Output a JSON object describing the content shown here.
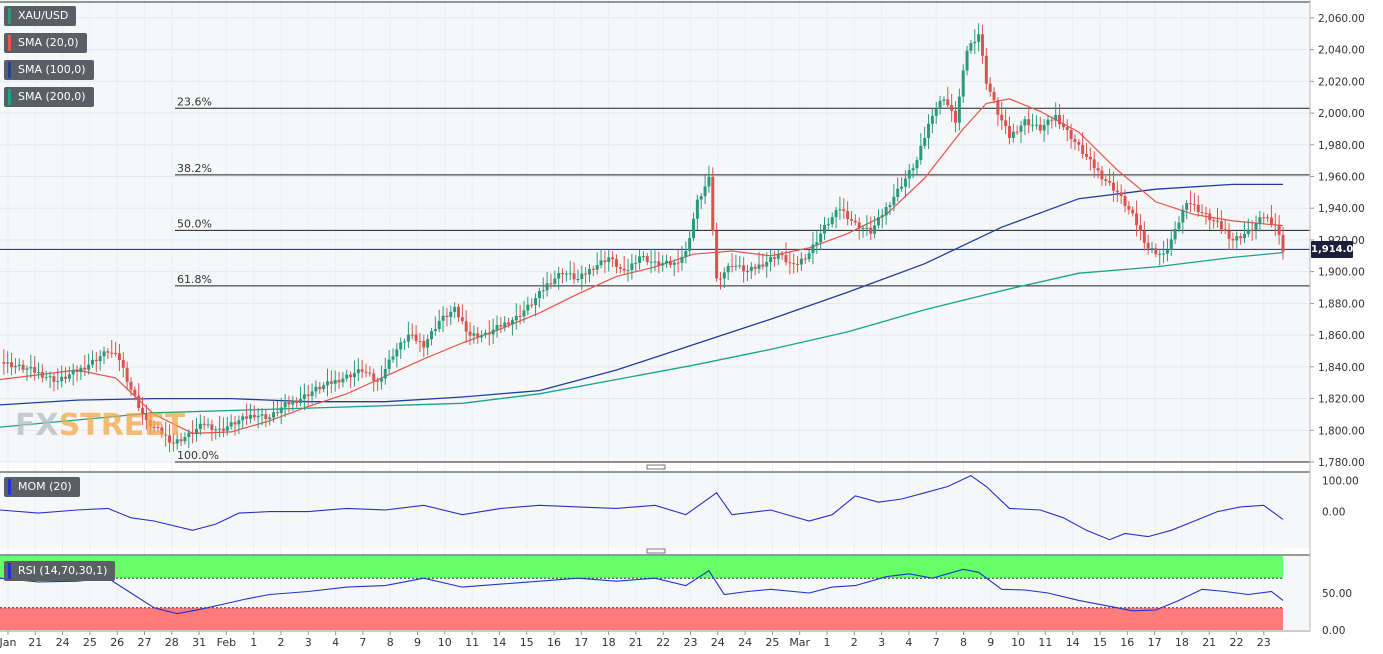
{
  "legend": {
    "symbol": "XAU/USD",
    "sma20": "SMA (20,0)",
    "sma100": "SMA (100,0)",
    "sma200": "SMA (200,0)",
    "mom": "MOM (20)",
    "rsi": "RSI (14,70,30,1)"
  },
  "colors": {
    "up": "#2b9a7a",
    "down": "#d9534f",
    "sma20": "#e8534a",
    "sma100": "#1f3f9a",
    "sma200": "#17a589",
    "momentum": "#2233cc",
    "rsi": "#2233cc",
    "rsi_overbought": "#66ff66",
    "rsi_oversold": "#ff7b7b"
  },
  "watermark": {
    "part1": "FX",
    "part2": "STREET"
  },
  "current_price": "1,914.01",
  "chart_data": {
    "type": "candlestick",
    "price_ylim": [
      1780,
      2070
    ],
    "price_ticks": [
      "1,780.00",
      "1,800.00",
      "1,820.00",
      "1,840.00",
      "1,860.00",
      "1,880.00",
      "1,900.00",
      "1,920.00",
      "1,940.00",
      "1,960.00",
      "1,980.00",
      "2,000.00",
      "2,020.00",
      "2,040.00",
      "2,060.00"
    ],
    "fib_levels": [
      {
        "label": "23.6%",
        "value": 2003
      },
      {
        "label": "38.2%",
        "value": 1961
      },
      {
        "label": "50.0%",
        "value": 1926
      },
      {
        "label": "61.8%",
        "value": 1891
      },
      {
        "label": "100.0%",
        "value": 1780
      }
    ],
    "last_price": 1914.01,
    "x_labels": [
      "Jan",
      "21",
      "24",
      "25",
      "26",
      "27",
      "28",
      "31",
      "Feb",
      "1",
      "2",
      "3",
      "4",
      "7",
      "8",
      "9",
      "10",
      "11",
      "14",
      "15",
      "16",
      "17",
      "18",
      "21",
      "22",
      "23",
      "24",
      "24",
      "25",
      "Mar",
      "1",
      "2",
      "3",
      "4",
      "7",
      "8",
      "9",
      "10",
      "11",
      "14",
      "15",
      "16",
      "17",
      "18",
      "21",
      "22",
      "23"
    ],
    "close_path": [
      [
        0,
        1843
      ],
      [
        8,
        1838
      ],
      [
        15,
        1831
      ],
      [
        22,
        1840
      ],
      [
        28,
        1850
      ],
      [
        31,
        1845
      ],
      [
        34,
        1826
      ],
      [
        38,
        1805
      ],
      [
        41,
        1800
      ],
      [
        45,
        1792
      ],
      [
        49,
        1797
      ],
      [
        53,
        1804
      ],
      [
        57,
        1800
      ],
      [
        62,
        1806
      ],
      [
        66,
        1810
      ],
      [
        70,
        1808
      ],
      [
        74,
        1816
      ],
      [
        78,
        1820
      ],
      [
        82,
        1826
      ],
      [
        86,
        1830
      ],
      [
        90,
        1834
      ],
      [
        94,
        1838
      ],
      [
        98,
        1830
      ],
      [
        102,
        1848
      ],
      [
        106,
        1860
      ],
      [
        110,
        1854
      ],
      [
        114,
        1869
      ],
      [
        118,
        1876
      ],
      [
        122,
        1860
      ],
      [
        126,
        1860
      ],
      [
        130,
        1866
      ],
      [
        134,
        1871
      ],
      [
        138,
        1880
      ],
      [
        142,
        1892
      ],
      [
        146,
        1900
      ],
      [
        150,
        1895
      ],
      [
        154,
        1903
      ],
      [
        158,
        1909
      ],
      [
        162,
        1899
      ],
      [
        166,
        1910
      ],
      [
        170,
        1905
      ],
      [
        175,
        1905
      ],
      [
        178,
        1912
      ],
      [
        181,
        1944
      ],
      [
        184,
        1958
      ],
      [
        186,
        1895
      ],
      [
        190,
        1905
      ],
      [
        194,
        1900
      ],
      [
        198,
        1905
      ],
      [
        202,
        1911
      ],
      [
        206,
        1903
      ],
      [
        210,
        1912
      ],
      [
        214,
        1928
      ],
      [
        218,
        1940
      ],
      [
        222,
        1930
      ],
      [
        226,
        1925
      ],
      [
        230,
        1940
      ],
      [
        234,
        1955
      ],
      [
        238,
        1970
      ],
      [
        242,
        2000
      ],
      [
        245,
        2010
      ],
      [
        248,
        1995
      ],
      [
        251,
        2040
      ],
      [
        254,
        2050
      ],
      [
        256,
        2020
      ],
      [
        259,
        2000
      ],
      [
        262,
        1985
      ],
      [
        266,
        1995
      ],
      [
        270,
        1990
      ],
      [
        274,
        1998
      ],
      [
        278,
        1985
      ],
      [
        282,
        1972
      ],
      [
        286,
        1960
      ],
      [
        290,
        1950
      ],
      [
        294,
        1935
      ],
      [
        298,
        1915
      ],
      [
        302,
        1910
      ],
      [
        305,
        1925
      ],
      [
        308,
        1945
      ],
      [
        312,
        1937
      ],
      [
        316,
        1930
      ],
      [
        320,
        1920
      ],
      [
        324,
        1925
      ],
      [
        328,
        1935
      ],
      [
        331,
        1930
      ],
      [
        333,
        1914
      ]
    ],
    "sma20_path": [
      [
        0,
        1832
      ],
      [
        20,
        1838
      ],
      [
        30,
        1833
      ],
      [
        40,
        1810
      ],
      [
        50,
        1798
      ],
      [
        60,
        1799
      ],
      [
        70,
        1806
      ],
      [
        80,
        1815
      ],
      [
        90,
        1823
      ],
      [
        100,
        1834
      ],
      [
        110,
        1845
      ],
      [
        120,
        1855
      ],
      [
        130,
        1864
      ],
      [
        140,
        1874
      ],
      [
        150,
        1886
      ],
      [
        160,
        1897
      ],
      [
        170,
        1903
      ],
      [
        180,
        1911
      ],
      [
        190,
        1913
      ],
      [
        200,
        1910
      ],
      [
        210,
        1915
      ],
      [
        220,
        1924
      ],
      [
        230,
        1936
      ],
      [
        240,
        1959
      ],
      [
        250,
        1990
      ],
      [
        256,
        2006
      ],
      [
        262,
        2009
      ],
      [
        270,
        2001
      ],
      [
        280,
        1988
      ],
      [
        290,
        1964
      ],
      [
        300,
        1944
      ],
      [
        310,
        1936
      ],
      [
        320,
        1932
      ],
      [
        333,
        1929
      ]
    ],
    "sma100_path": [
      [
        0,
        1816
      ],
      [
        20,
        1819
      ],
      [
        40,
        1820
      ],
      [
        60,
        1820
      ],
      [
        80,
        1818
      ],
      [
        100,
        1818
      ],
      [
        120,
        1821
      ],
      [
        140,
        1825
      ],
      [
        160,
        1838
      ],
      [
        180,
        1854
      ],
      [
        200,
        1870
      ],
      [
        220,
        1887
      ],
      [
        240,
        1905
      ],
      [
        260,
        1928
      ],
      [
        280,
        1946
      ],
      [
        300,
        1952
      ],
      [
        320,
        1955
      ],
      [
        333,
        1955
      ]
    ],
    "sma200_path": [
      [
        0,
        1802
      ],
      [
        40,
        1811
      ],
      [
        80,
        1814
      ],
      [
        120,
        1817
      ],
      [
        140,
        1823
      ],
      [
        160,
        1832
      ],
      [
        180,
        1841
      ],
      [
        200,
        1851
      ],
      [
        220,
        1862
      ],
      [
        240,
        1876
      ],
      [
        260,
        1888
      ],
      [
        280,
        1899
      ],
      [
        300,
        1903
      ],
      [
        320,
        1909
      ],
      [
        333,
        1912
      ]
    ],
    "mom_ticks": [
      "100.00",
      "0.00"
    ],
    "mom_range": [
      -110,
      120
    ],
    "mom_path": [
      [
        0,
        5
      ],
      [
        10,
        -5
      ],
      [
        20,
        5
      ],
      [
        28,
        10
      ],
      [
        34,
        -20
      ],
      [
        40,
        -30
      ],
      [
        50,
        -60
      ],
      [
        56,
        -40
      ],
      [
        62,
        -5
      ],
      [
        70,
        0
      ],
      [
        80,
        0
      ],
      [
        90,
        10
      ],
      [
        100,
        5
      ],
      [
        110,
        20
      ],
      [
        120,
        -10
      ],
      [
        130,
        10
      ],
      [
        140,
        20
      ],
      [
        150,
        15
      ],
      [
        160,
        10
      ],
      [
        170,
        20
      ],
      [
        178,
        -10
      ],
      [
        186,
        60
      ],
      [
        190,
        -10
      ],
      [
        200,
        5
      ],
      [
        210,
        -30
      ],
      [
        216,
        -10
      ],
      [
        222,
        50
      ],
      [
        228,
        30
      ],
      [
        234,
        40
      ],
      [
        240,
        60
      ],
      [
        246,
        80
      ],
      [
        252,
        115
      ],
      [
        256,
        80
      ],
      [
        262,
        10
      ],
      [
        270,
        5
      ],
      [
        276,
        -20
      ],
      [
        282,
        -60
      ],
      [
        288,
        -90
      ],
      [
        292,
        -70
      ],
      [
        298,
        -80
      ],
      [
        304,
        -60
      ],
      [
        310,
        -30
      ],
      [
        316,
        0
      ],
      [
        322,
        15
      ],
      [
        328,
        20
      ],
      [
        333,
        -25
      ]
    ],
    "rsi_ticks": [
      "50.00",
      "0.00"
    ],
    "rsi_range": [
      0,
      100
    ],
    "rsi_bands": {
      "overbought": 70,
      "oversold": 30
    },
    "rsi_path": [
      [
        0,
        70
      ],
      [
        10,
        65
      ],
      [
        20,
        66
      ],
      [
        28,
        70
      ],
      [
        34,
        50
      ],
      [
        40,
        30
      ],
      [
        46,
        22
      ],
      [
        52,
        28
      ],
      [
        58,
        35
      ],
      [
        64,
        42
      ],
      [
        70,
        48
      ],
      [
        80,
        52
      ],
      [
        90,
        58
      ],
      [
        100,
        60
      ],
      [
        110,
        70
      ],
      [
        120,
        58
      ],
      [
        130,
        62
      ],
      [
        140,
        66
      ],
      [
        150,
        70
      ],
      [
        160,
        66
      ],
      [
        170,
        70
      ],
      [
        178,
        60
      ],
      [
        184,
        80
      ],
      [
        188,
        48
      ],
      [
        194,
        52
      ],
      [
        200,
        55
      ],
      [
        210,
        50
      ],
      [
        216,
        58
      ],
      [
        222,
        60
      ],
      [
        230,
        72
      ],
      [
        236,
        76
      ],
      [
        242,
        70
      ],
      [
        250,
        82
      ],
      [
        254,
        78
      ],
      [
        260,
        55
      ],
      [
        266,
        54
      ],
      [
        272,
        50
      ],
      [
        280,
        40
      ],
      [
        288,
        32
      ],
      [
        294,
        26
      ],
      [
        300,
        27
      ],
      [
        306,
        40
      ],
      [
        312,
        55
      ],
      [
        318,
        52
      ],
      [
        324,
        48
      ],
      [
        330,
        52
      ],
      [
        333,
        40
      ]
    ]
  }
}
